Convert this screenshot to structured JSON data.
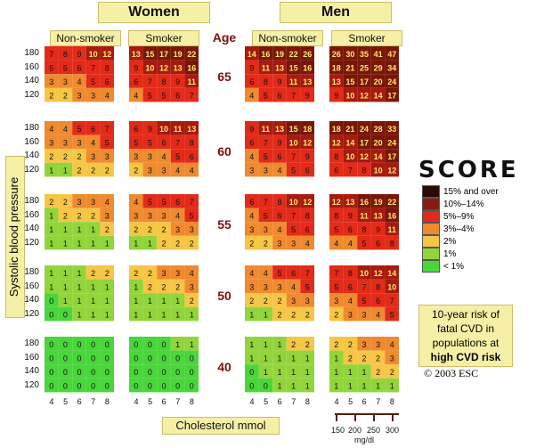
{
  "headers": {
    "women": "Women",
    "men": "Men",
    "non_smoker": "Non-smoker",
    "smoker": "Smoker",
    "age": "Age",
    "y_axis": "Systolic blood pressure",
    "x_axis": "Cholesterol mmol"
  },
  "sbp_levels": [
    "180",
    "160",
    "140",
    "120"
  ],
  "chol_levels": [
    "4",
    "5",
    "6",
    "7",
    "8"
  ],
  "chol_mg": {
    "values": [
      "150",
      "200",
      "250",
      "300"
    ],
    "unit": "mg/dl"
  },
  "logo": "SCORE",
  "legend": [
    {
      "label": "15% and over",
      "color": "#2a0a06"
    },
    {
      "label": "10%–14%",
      "color": "#8a1a0e"
    },
    {
      "label": "5%–9%",
      "color": "#e02a1a"
    },
    {
      "label": "3%–4%",
      "color": "#f08a2e"
    },
    {
      "label": "2%",
      "color": "#f6c644"
    },
    {
      "label": "1%",
      "color": "#92d53a"
    },
    {
      "label": "< 1%",
      "color": "#49d63a"
    }
  ],
  "risk_box": {
    "line1": "10-year risk of",
    "line2": "fatal CVD in",
    "line3": "populations at",
    "line4": "high CVD risk"
  },
  "copyright": "© 2003 ESC",
  "chart_data": {
    "type": "heatmap",
    "title": "",
    "xlabel": "Cholesterol mmol",
    "ylabel": "Systolic blood pressure",
    "ages": [
      "65",
      "60",
      "55",
      "50",
      "40"
    ],
    "sbp": [
      "180",
      "160",
      "140",
      "120"
    ],
    "cholesterol": [
      "4",
      "5",
      "6",
      "7",
      "8"
    ],
    "women_nonsmoker": [
      [
        [
          7,
          8,
          9,
          10,
          12
        ],
        [
          5,
          5,
          6,
          7,
          8
        ],
        [
          3,
          3,
          4,
          5,
          6
        ],
        [
          2,
          2,
          3,
          3,
          4
        ]
      ],
      [
        [
          4,
          4,
          5,
          6,
          7
        ],
        [
          3,
          3,
          3,
          4,
          5
        ],
        [
          2,
          2,
          2,
          3,
          3
        ],
        [
          1,
          1,
          2,
          2,
          2
        ]
      ],
      [
        [
          2,
          2,
          3,
          3,
          4
        ],
        [
          1,
          2,
          2,
          2,
          3
        ],
        [
          1,
          1,
          1,
          1,
          2
        ],
        [
          1,
          1,
          1,
          1,
          1
        ]
      ],
      [
        [
          1,
          1,
          1,
          2,
          2
        ],
        [
          1,
          1,
          1,
          1,
          1
        ],
        [
          0,
          1,
          1,
          1,
          1
        ],
        [
          0,
          0,
          1,
          1,
          1
        ]
      ],
      [
        [
          0,
          0,
          0,
          0,
          0
        ],
        [
          0,
          0,
          0,
          0,
          0
        ],
        [
          0,
          0,
          0,
          0,
          0
        ],
        [
          0,
          0,
          0,
          0,
          0
        ]
      ]
    ],
    "women_smoker": [
      [
        [
          13,
          15,
          17,
          19,
          22
        ],
        [
          9,
          10,
          12,
          13,
          16
        ],
        [
          6,
          7,
          8,
          9,
          11
        ],
        [
          4,
          5,
          5,
          6,
          7
        ]
      ],
      [
        [
          6,
          9,
          10,
          11,
          13
        ],
        [
          5,
          5,
          6,
          7,
          8
        ],
        [
          3,
          3,
          4,
          5,
          6
        ],
        [
          2,
          3,
          3,
          4,
          4
        ]
      ],
      [
        [
          4,
          5,
          5,
          6,
          7
        ],
        [
          3,
          3,
          3,
          4,
          5
        ],
        [
          2,
          2,
          2,
          3,
          3
        ],
        [
          1,
          1,
          2,
          2,
          2
        ]
      ],
      [
        [
          2,
          2,
          3,
          3,
          4
        ],
        [
          1,
          2,
          2,
          2,
          3
        ],
        [
          1,
          1,
          1,
          1,
          2
        ],
        [
          1,
          1,
          1,
          1,
          1
        ]
      ],
      [
        [
          0,
          0,
          0,
          1,
          1
        ],
        [
          0,
          0,
          0,
          0,
          0
        ],
        [
          0,
          0,
          0,
          0,
          0
        ],
        [
          0,
          0,
          0,
          0,
          0
        ]
      ]
    ],
    "men_nonsmoker": [
      [
        [
          14,
          16,
          19,
          22,
          26
        ],
        [
          9,
          11,
          13,
          15,
          16
        ],
        [
          6,
          8,
          9,
          11,
          13
        ],
        [
          4,
          5,
          6,
          7,
          9
        ]
      ],
      [
        [
          9,
          11,
          13,
          15,
          18
        ],
        [
          6,
          7,
          9,
          10,
          12
        ],
        [
          4,
          5,
          6,
          7,
          9
        ],
        [
          3,
          3,
          4,
          5,
          6
        ]
      ],
      [
        [
          6,
          7,
          8,
          10,
          12
        ],
        [
          4,
          5,
          6,
          7,
          8
        ],
        [
          3,
          3,
          4,
          5,
          6
        ],
        [
          2,
          2,
          3,
          3,
          4
        ]
      ],
      [
        [
          4,
          4,
          5,
          6,
          7
        ],
        [
          3,
          3,
          3,
          4,
          5
        ],
        [
          2,
          2,
          2,
          3,
          3
        ],
        [
          1,
          1,
          2,
          2,
          2
        ]
      ],
      [
        [
          1,
          1,
          1,
          2,
          2
        ],
        [
          1,
          1,
          1,
          1,
          1
        ],
        [
          0,
          1,
          1,
          1,
          1
        ],
        [
          0,
          0,
          1,
          1,
          1
        ]
      ]
    ],
    "men_smoker": [
      [
        [
          26,
          30,
          35,
          41,
          47
        ],
        [
          18,
          21,
          25,
          29,
          34
        ],
        [
          13,
          15,
          17,
          20,
          24
        ],
        [
          9,
          10,
          12,
          14,
          17
        ]
      ],
      [
        [
          18,
          21,
          24,
          28,
          33
        ],
        [
          12,
          14,
          17,
          20,
          24
        ],
        [
          8,
          10,
          12,
          14,
          17
        ],
        [
          6,
          7,
          8,
          10,
          12
        ]
      ],
      [
        [
          12,
          13,
          16,
          19,
          22
        ],
        [
          8,
          9,
          11,
          13,
          16
        ],
        [
          5,
          6,
          8,
          9,
          11
        ],
        [
          4,
          4,
          5,
          6,
          8
        ]
      ],
      [
        [
          7,
          8,
          10,
          12,
          14
        ],
        [
          5,
          6,
          7,
          8,
          10
        ],
        [
          3,
          4,
          5,
          6,
          7
        ],
        [
          2,
          3,
          3,
          4,
          5
        ]
      ],
      [
        [
          2,
          2,
          3,
          3,
          4
        ],
        [
          1,
          2,
          2,
          2,
          3
        ],
        [
          1,
          1,
          1,
          2,
          2
        ],
        [
          1,
          1,
          1,
          1,
          1
        ]
      ]
    ]
  }
}
